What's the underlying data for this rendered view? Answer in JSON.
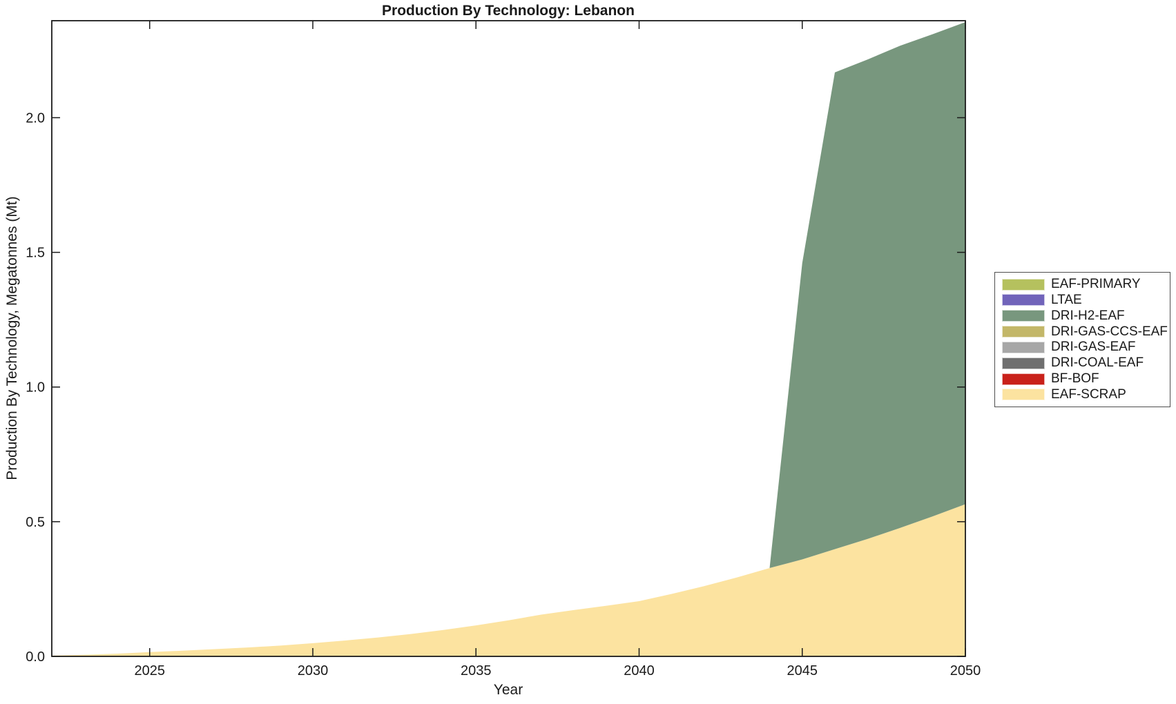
{
  "chart_data": {
    "type": "area",
    "stacked": true,
    "title": "Production By Technology: Lebanon",
    "xlabel": "Year",
    "ylabel": "Production By Technology, Megatonnes (Mt)",
    "xlim": [
      2022,
      2050
    ],
    "ylim": [
      0,
      2.36
    ],
    "grid": false,
    "legend_position": "right-outside",
    "xticks": {
      "values": [
        2025,
        2030,
        2035,
        2040,
        2045,
        2050
      ],
      "labels": [
        "2025",
        "2030",
        "2035",
        "2040",
        "2045",
        "2050"
      ]
    },
    "yticks": {
      "values": [
        0,
        0.5,
        1.0,
        1.5,
        2.0
      ],
      "labels": [
        "0.0",
        "0.5",
        "1.0",
        "1.5",
        "2.0"
      ]
    },
    "x": [
      2022,
      2023,
      2024,
      2025,
      2026,
      2027,
      2028,
      2029,
      2030,
      2031,
      2032,
      2033,
      2034,
      2035,
      2036,
      2037,
      2038,
      2039,
      2040,
      2041,
      2042,
      2043,
      2044,
      2045,
      2046,
      2047,
      2048,
      2049,
      2050
    ],
    "series": [
      {
        "name": "EAF-SCRAP",
        "color": "#fce3a0",
        "values": [
          0.003,
          0.006,
          0.01,
          0.016,
          0.021,
          0.027,
          0.033,
          0.04,
          0.049,
          0.059,
          0.07,
          0.083,
          0.098,
          0.115,
          0.134,
          0.155,
          0.172,
          0.188,
          0.205,
          0.232,
          0.261,
          0.293,
          0.328,
          0.36,
          0.398,
          0.436,
          0.477,
          0.52,
          0.565
        ]
      },
      {
        "name": "BF-BOF",
        "color": "#c9211a",
        "values": [
          0,
          0,
          0,
          0,
          0,
          0,
          0,
          0,
          0,
          0,
          0,
          0,
          0,
          0,
          0,
          0,
          0,
          0,
          0,
          0,
          0,
          0,
          0,
          0,
          0,
          0,
          0,
          0,
          0
        ]
      },
      {
        "name": "DRI-COAL-EAF",
        "color": "#6f6f6f",
        "values": [
          0,
          0,
          0,
          0,
          0,
          0,
          0,
          0,
          0,
          0,
          0,
          0,
          0,
          0,
          0,
          0,
          0,
          0,
          0,
          0,
          0,
          0,
          0,
          0,
          0,
          0,
          0,
          0,
          0
        ]
      },
      {
        "name": "DRI-GAS-EAF",
        "color": "#a7a7a7",
        "values": [
          0,
          0,
          0,
          0,
          0,
          0,
          0,
          0,
          0,
          0,
          0,
          0,
          0,
          0,
          0,
          0,
          0,
          0,
          0,
          0,
          0,
          0,
          0,
          0,
          0,
          0,
          0,
          0,
          0
        ]
      },
      {
        "name": "DRI-GAS-CCS-EAF",
        "color": "#c3b768",
        "values": [
          0,
          0,
          0,
          0,
          0,
          0,
          0,
          0,
          0,
          0,
          0,
          0,
          0,
          0,
          0,
          0,
          0,
          0,
          0,
          0,
          0,
          0,
          0,
          0,
          0,
          0,
          0,
          0,
          0
        ]
      },
      {
        "name": "DRI-H2-EAF",
        "color": "#78977e",
        "values": [
          0,
          0,
          0,
          0,
          0,
          0,
          0,
          0,
          0,
          0,
          0,
          0,
          0,
          0,
          0,
          0,
          0,
          0,
          0,
          0,
          0,
          0,
          0,
          1.1,
          1.77,
          1.78,
          1.79,
          1.79,
          1.79
        ]
      },
      {
        "name": "LTAE",
        "color": "#7164ba",
        "values": [
          0,
          0,
          0,
          0,
          0,
          0,
          0,
          0,
          0,
          0,
          0,
          0,
          0,
          0,
          0,
          0,
          0,
          0,
          0,
          0,
          0,
          0,
          0,
          0,
          0,
          0,
          0,
          0,
          0
        ]
      },
      {
        "name": "EAF-PRIMARY",
        "color": "#b5c15e",
        "values": [
          0,
          0,
          0,
          0,
          0,
          0,
          0,
          0,
          0,
          0,
          0,
          0,
          0,
          0,
          0,
          0,
          0,
          0,
          0,
          0,
          0,
          0,
          0,
          0,
          0,
          0,
          0,
          0,
          0
        ]
      }
    ],
    "legend_order_top_to_bottom": [
      "EAF-PRIMARY",
      "LTAE",
      "DRI-H2-EAF",
      "DRI-GAS-CCS-EAF",
      "DRI-GAS-EAF",
      "DRI-COAL-EAF",
      "BF-BOF",
      "EAF-SCRAP"
    ]
  }
}
